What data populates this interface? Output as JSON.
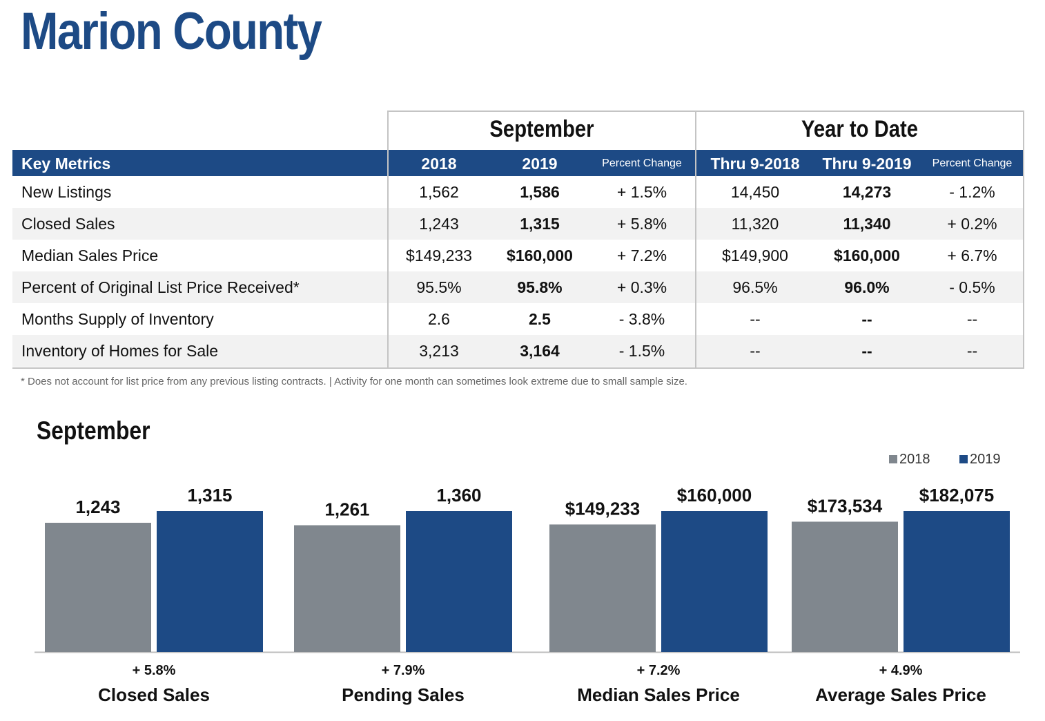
{
  "title": "Marion County",
  "table": {
    "group_september": "September",
    "group_ytd": "Year to Date",
    "headers": {
      "metric": "Key Metrics",
      "sep_2018": "2018",
      "sep_2019": "2019",
      "sep_pct": "Percent Change",
      "ytd_2018": "Thru 9-2018",
      "ytd_2019": "Thru 9-2019",
      "ytd_pct": "Percent Change"
    },
    "rows": [
      {
        "metric": "New Listings",
        "s18": "1,562",
        "s19": "1,586",
        "spct": "+ 1.5%",
        "y18": "14,450",
        "y19": "14,273",
        "ypct": "- 1.2%"
      },
      {
        "metric": "Closed Sales",
        "s18": "1,243",
        "s19": "1,315",
        "spct": "+ 5.8%",
        "y18": "11,320",
        "y19": "11,340",
        "ypct": "+ 0.2%"
      },
      {
        "metric": "Median Sales Price",
        "s18": "$149,233",
        "s19": "$160,000",
        "spct": "+ 7.2%",
        "y18": "$149,900",
        "y19": "$160,000",
        "ypct": "+ 6.7%"
      },
      {
        "metric": "Percent of Original List Price Received*",
        "s18": "95.5%",
        "s19": "95.8%",
        "spct": "+ 0.3%",
        "y18": "96.5%",
        "y19": "96.0%",
        "ypct": "- 0.5%"
      },
      {
        "metric": "Months Supply of Inventory",
        "s18": "2.6",
        "s19": "2.5",
        "spct": "- 3.8%",
        "y18": "--",
        "y19": "--",
        "ypct": "--"
      },
      {
        "metric": "Inventory of Homes for Sale",
        "s18": "3,213",
        "s19": "3,164",
        "spct": "- 1.5%",
        "y18": "--",
        "y19": "--",
        "ypct": "--"
      }
    ],
    "footnote": "* Does not account for list price from any previous listing contracts.  |  Activity for one month can sometimes look extreme due to small sample size."
  },
  "colors": {
    "brand_blue": "#1d4a85",
    "gray_bar": "#80878e",
    "row_shade": "#f2f2f2"
  },
  "chart_data": {
    "type": "bar",
    "title": "September",
    "legend_position": "top-right",
    "series": [
      {
        "name": "2018",
        "color": "#80878e"
      },
      {
        "name": "2019",
        "color": "#1d4a85"
      }
    ],
    "groups": [
      {
        "category": "Closed Sales",
        "change": "+ 5.8%",
        "values": [
          1243,
          1315
        ],
        "labels": [
          "1,243",
          "1,315"
        ]
      },
      {
        "category": "Pending Sales",
        "change": "+ 7.9%",
        "values": [
          1261,
          1360
        ],
        "labels": [
          "1,261",
          "1,360"
        ]
      },
      {
        "category": "Median Sales Price",
        "change": "+ 7.2%",
        "values": [
          149233,
          160000
        ],
        "labels": [
          "$149,233",
          "$160,000"
        ]
      },
      {
        "category": "Average Sales Price",
        "change": "+ 4.9%",
        "values": [
          173534,
          182075
        ],
        "labels": [
          "$173,534",
          "$182,075"
        ]
      }
    ]
  }
}
